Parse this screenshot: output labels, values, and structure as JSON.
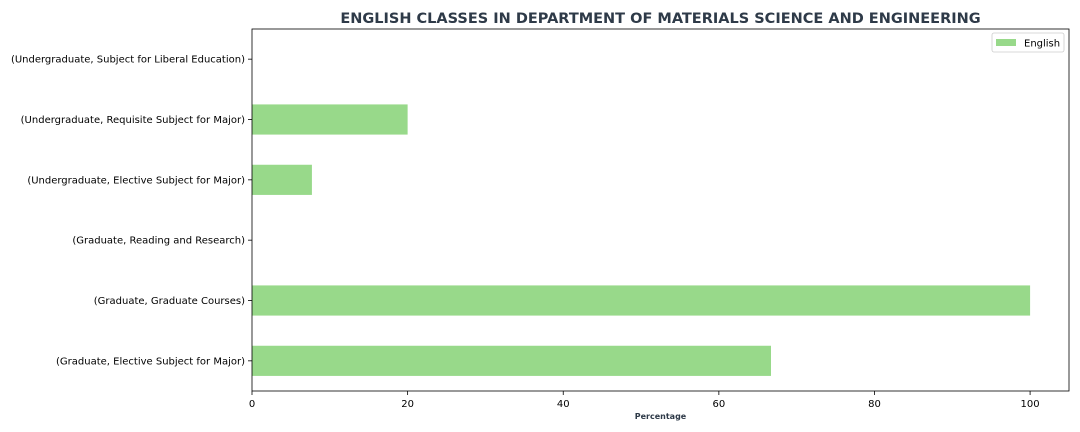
{
  "chart_data": {
    "type": "bar",
    "orientation": "horizontal",
    "title": "ENGLISH CLASSES IN DEPARTMENT OF MATERIALS SCIENCE AND ENGINEERING",
    "xlabel": "Percentage",
    "ylabel": "",
    "categories": [
      "(Undergraduate, Subject for Liberal Education)",
      "(Undergraduate, Requisite Subject for Major)",
      "(Undergraduate, Elective Subject for Major)",
      "(Graduate, Reading and Research)",
      "(Graduate, Graduate Courses)",
      "(Graduate, Elective Subject for Major)"
    ],
    "series": [
      {
        "name": "English",
        "values": [
          0,
          20,
          7.7,
          0,
          100,
          66.7
        ],
        "color": "#98d98a"
      }
    ],
    "xlim": [
      0,
      105
    ],
    "xticks": [
      0,
      20,
      40,
      60,
      80,
      100
    ],
    "grid": false,
    "legend": "top-right",
    "title_color": "#2e3a48",
    "xlabel_color": "#2e3a48"
  }
}
